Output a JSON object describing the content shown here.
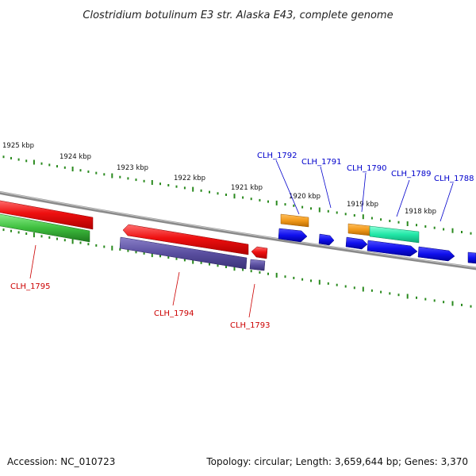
{
  "title": "Clostridium botulinum E3 str. Alaska E43, complete genome",
  "footer": {
    "accession": "Accession: NC_010723",
    "summary": "Topology: circular; Length: 3,659,644 bp; Genes: 3,370"
  },
  "kbp_labels": [
    "1925 kbp",
    "1924 kbp",
    "1923 kbp",
    "1922 kbp",
    "1921 kbp",
    "1920 kbp",
    "1919 kbp",
    "1918 kbp"
  ],
  "genes_forward": [
    {
      "label": "CLH_1792",
      "color": "#0000cc"
    },
    {
      "label": "CLH_1791",
      "color": "#0000cc"
    },
    {
      "label": "CLH_1790",
      "color": "#0000cc"
    },
    {
      "label": "CLH_1789",
      "color": "#0000cc"
    },
    {
      "label": "CLH_1788",
      "color": "#0000cc"
    }
  ],
  "genes_reverse": [
    {
      "label": "CLH_1795",
      "color": "#cc0000"
    },
    {
      "label": "CLH_1794",
      "color": "#cc0000"
    },
    {
      "label": "CLH_1793",
      "color": "#cc0000"
    }
  ],
  "colors": {
    "backbone": "#8a8a8a",
    "tick": "#2a8a1e",
    "forward_cds": "#1010ee",
    "orange_feature": "#f29a1a",
    "teal_feature": "#22e8a8",
    "reverse_cds": "#ee1010",
    "green_feature": "#3fbf3f",
    "purple_feature": "#5a4fa0"
  }
}
